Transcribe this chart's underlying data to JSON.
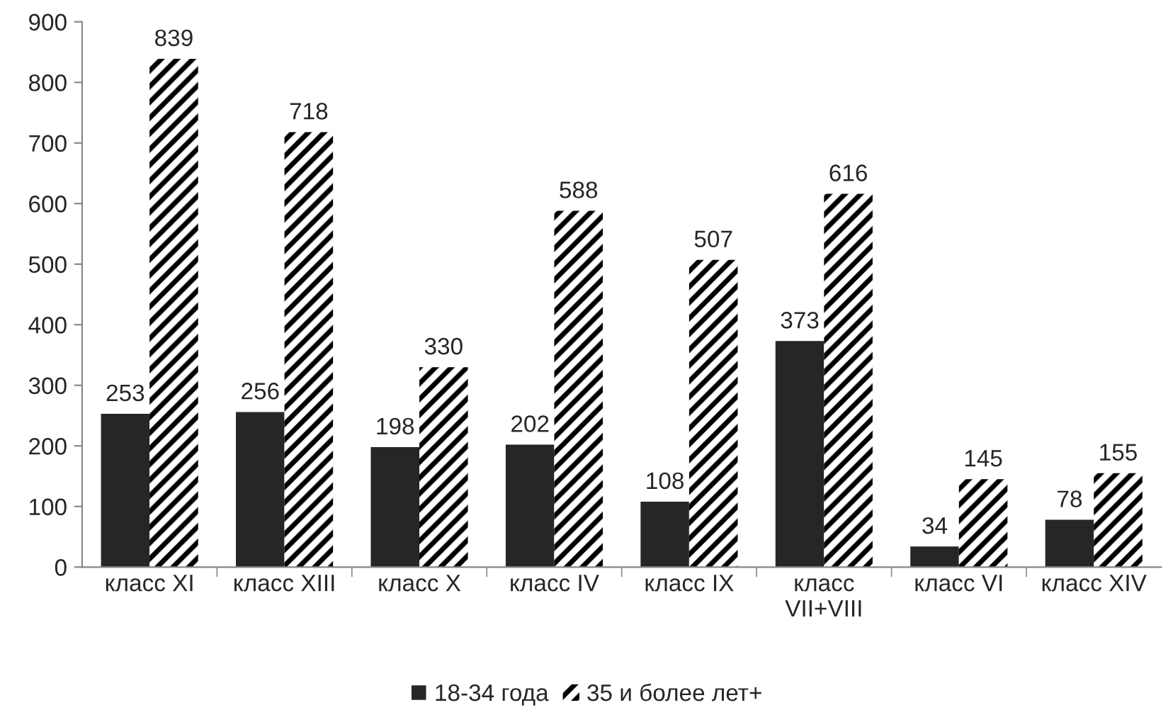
{
  "chart_data": {
    "type": "bar",
    "categories": [
      "класс XI",
      "класс XIII",
      "класс X",
      "класс IV",
      "класс IX",
      "класс VII+VIII",
      "класс VI",
      "класс XIV"
    ],
    "series": [
      {
        "name": "18-34 года",
        "color": "#262626",
        "values": [
          253,
          256,
          198,
          202,
          108,
          373,
          34,
          78
        ]
      },
      {
        "name": "35 и более лет+",
        "color": "#000000",
        "values": [
          839,
          718,
          330,
          588,
          507,
          616,
          145,
          155
        ]
      }
    ],
    "ylim": [
      0,
      900
    ],
    "yticks": [
      0,
      100,
      200,
      300,
      400,
      500,
      600,
      700,
      800,
      900
    ],
    "grid": false,
    "legend": "bottom",
    "data_labels": true
  }
}
